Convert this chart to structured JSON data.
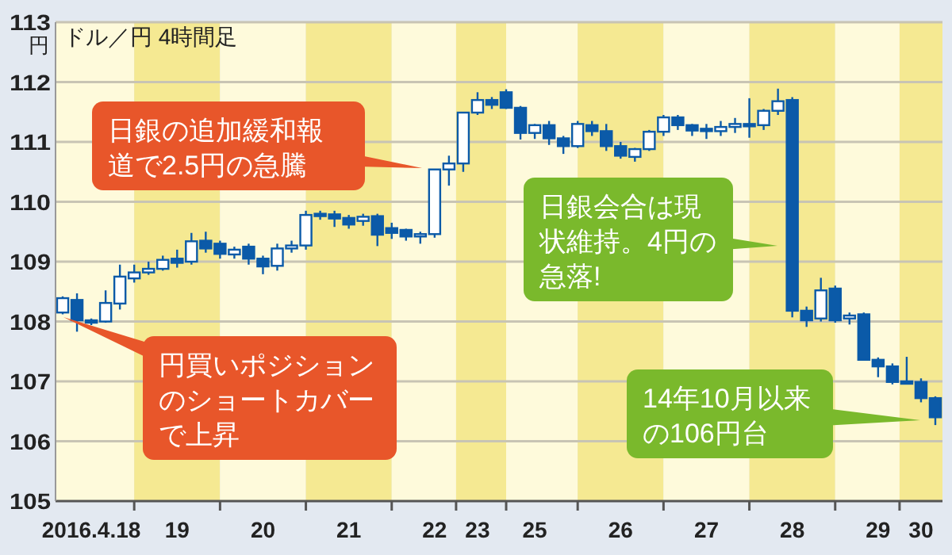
{
  "chart_data": {
    "type": "candlestick",
    "title": "ドル／円 4時間足",
    "ylabel": "円",
    "color": "#0b5aa8",
    "grid": "y",
    "ylim": [
      105,
      113
    ],
    "yticks": [
      105,
      106,
      107,
      108,
      109,
      110,
      111,
      112,
      113
    ],
    "categories": [
      null,
      null,
      "2016.4.18",
      null,
      null,
      null,
      null,
      null,
      "19",
      null,
      null,
      null,
      null,
      null,
      "20",
      null,
      null,
      null,
      null,
      null,
      "21",
      null,
      null,
      null,
      null,
      null,
      "22",
      null,
      null,
      "23",
      null,
      null,
      null,
      "25",
      null,
      null,
      null,
      null,
      null,
      "26",
      null,
      null,
      null,
      null,
      null,
      "27",
      null,
      null,
      null,
      null,
      null,
      "28",
      null,
      null,
      null,
      null,
      null,
      "29",
      null,
      null,
      "30",
      null
    ],
    "ohlc": [
      [
        108.15,
        108.42,
        108.12,
        108.39
      ],
      [
        108.36,
        108.47,
        107.83,
        108.02
      ],
      [
        108.02,
        108.05,
        107.94,
        107.98
      ],
      [
        108.0,
        108.52,
        107.98,
        108.31
      ],
      [
        108.3,
        108.95,
        108.2,
        108.75
      ],
      [
        108.72,
        108.95,
        108.65,
        108.82
      ],
      [
        108.82,
        109.0,
        108.78,
        108.88
      ],
      [
        108.88,
        109.1,
        108.85,
        109.03
      ],
      [
        109.05,
        109.2,
        108.9,
        108.98
      ],
      [
        109.0,
        109.48,
        108.95,
        109.34
      ],
      [
        109.35,
        109.5,
        109.15,
        109.22
      ],
      [
        109.3,
        109.35,
        109.05,
        109.13
      ],
      [
        109.12,
        109.25,
        109.05,
        109.2
      ],
      [
        109.25,
        109.3,
        108.95,
        109.05
      ],
      [
        109.05,
        109.1,
        108.79,
        108.92
      ],
      [
        108.93,
        109.3,
        108.85,
        109.22
      ],
      [
        109.22,
        109.35,
        109.15,
        109.27
      ],
      [
        109.27,
        109.85,
        109.2,
        109.78
      ],
      [
        109.8,
        109.85,
        109.7,
        109.78
      ],
      [
        109.79,
        109.85,
        109.58,
        109.72
      ],
      [
        109.73,
        109.78,
        109.55,
        109.62
      ],
      [
        109.68,
        109.8,
        109.6,
        109.75
      ],
      [
        109.76,
        109.8,
        109.26,
        109.45
      ],
      [
        109.56,
        109.65,
        109.38,
        109.48
      ],
      [
        109.53,
        109.55,
        109.35,
        109.42
      ],
      [
        109.42,
        109.5,
        109.3,
        109.46
      ],
      [
        109.46,
        110.55,
        109.4,
        110.54
      ],
      [
        110.54,
        110.77,
        110.27,
        110.64
      ],
      [
        110.64,
        111.5,
        110.5,
        111.49
      ],
      [
        111.49,
        111.83,
        111.45,
        111.7
      ],
      [
        111.7,
        111.75,
        111.55,
        111.62
      ],
      [
        111.83,
        111.88,
        111.55,
        111.57
      ],
      [
        111.57,
        111.6,
        111.04,
        111.15
      ],
      [
        111.15,
        111.3,
        111.05,
        111.28
      ],
      [
        111.28,
        111.35,
        110.95,
        111.06
      ],
      [
        111.06,
        111.1,
        110.8,
        110.93
      ],
      [
        110.93,
        111.35,
        110.9,
        111.3
      ],
      [
        111.28,
        111.35,
        111.1,
        111.18
      ],
      [
        111.18,
        111.3,
        110.85,
        110.93
      ],
      [
        110.93,
        111.0,
        110.72,
        110.77
      ],
      [
        110.75,
        110.9,
        110.67,
        110.88
      ],
      [
        110.88,
        111.2,
        110.85,
        111.17
      ],
      [
        111.17,
        111.45,
        111.1,
        111.41
      ],
      [
        111.41,
        111.45,
        111.2,
        111.28
      ],
      [
        111.28,
        111.3,
        111.1,
        111.19
      ],
      [
        111.22,
        111.3,
        111.05,
        111.18
      ],
      [
        111.18,
        111.35,
        111.1,
        111.25
      ],
      [
        111.25,
        111.4,
        111.15,
        111.3
      ],
      [
        111.3,
        111.73,
        111.07,
        111.28
      ],
      [
        111.28,
        111.55,
        111.2,
        111.52
      ],
      [
        111.52,
        111.89,
        111.45,
        111.68
      ],
      [
        111.7,
        111.75,
        108.07,
        108.18
      ],
      [
        108.18,
        108.25,
        107.91,
        108.02
      ],
      [
        108.05,
        108.73,
        108.0,
        108.52
      ],
      [
        108.55,
        108.6,
        107.98,
        108.02
      ],
      [
        108.05,
        108.15,
        107.95,
        108.1
      ],
      [
        108.12,
        108.15,
        107.35,
        107.36
      ],
      [
        107.36,
        107.4,
        107.07,
        107.25
      ],
      [
        107.25,
        107.3,
        106.95,
        106.99
      ],
      [
        107.0,
        107.41,
        106.95,
        106.98
      ],
      [
        106.99,
        107.05,
        106.65,
        106.72
      ],
      [
        106.72,
        106.75,
        106.27,
        106.4
      ]
    ],
    "annotations": [
      "円買いポジションのショートカバーで上昇",
      "日銀の追加緩和報道で2.5円の急騰",
      "日銀会合は現状維持。4円の急落!",
      "14年10月以来の106円台"
    ]
  }
}
